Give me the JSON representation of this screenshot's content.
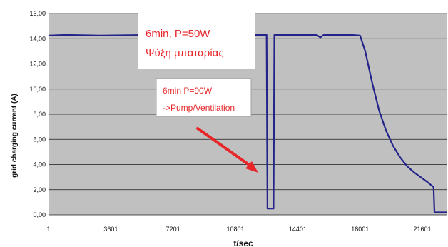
{
  "chart_data": {
    "type": "line",
    "xlabel": "t/sec",
    "ylabel": "grid charging current (A)",
    "ylim": [
      0,
      16
    ],
    "xlim": [
      1,
      23000
    ],
    "grid": "horizontal",
    "background": "#c0c0c0",
    "line_color": "#23238a",
    "x_ticks": [
      "1",
      "3601",
      "7201",
      "10801",
      "14401",
      "18001",
      "21601"
    ],
    "y_ticks": [
      "0,00",
      "2,00",
      "4,00",
      "6,00",
      "8,00",
      "10,00",
      "12,00",
      "14,00",
      "16,00"
    ],
    "series": [
      {
        "values": [
          [
            1,
            14.25
          ],
          [
            1000,
            14.3
          ],
          [
            3000,
            14.25
          ],
          [
            6000,
            14.3
          ],
          [
            9000,
            14.28
          ],
          [
            12000,
            14.3
          ],
          [
            12600,
            14.3
          ],
          [
            12650,
            0.5
          ],
          [
            13000,
            0.5
          ],
          [
            13050,
            14.3
          ],
          [
            14000,
            14.3
          ],
          [
            15500,
            14.3
          ],
          [
            15700,
            14.1
          ],
          [
            15900,
            14.3
          ],
          [
            17500,
            14.3
          ],
          [
            18000,
            14.25
          ],
          [
            18300,
            13.0
          ],
          [
            18700,
            10.5
          ],
          [
            19100,
            8.3
          ],
          [
            19500,
            6.7
          ],
          [
            19900,
            5.5
          ],
          [
            20300,
            4.6
          ],
          [
            20700,
            3.9
          ],
          [
            21100,
            3.4
          ],
          [
            21500,
            3.0
          ],
          [
            21900,
            2.6
          ],
          [
            22250,
            2.2
          ],
          [
            22300,
            0.2
          ],
          [
            23000,
            0.2
          ]
        ]
      }
    ],
    "annotations": [
      {
        "lines": [
          "6min, P=50W",
          "Ψύξη μπαταρίας"
        ]
      },
      {
        "lines": [
          "6min P=90W",
          "->Pump/Ventilation"
        ]
      }
    ],
    "colors": {
      "annotation_text": "#e8262a",
      "arrow": "#e8262a"
    }
  }
}
